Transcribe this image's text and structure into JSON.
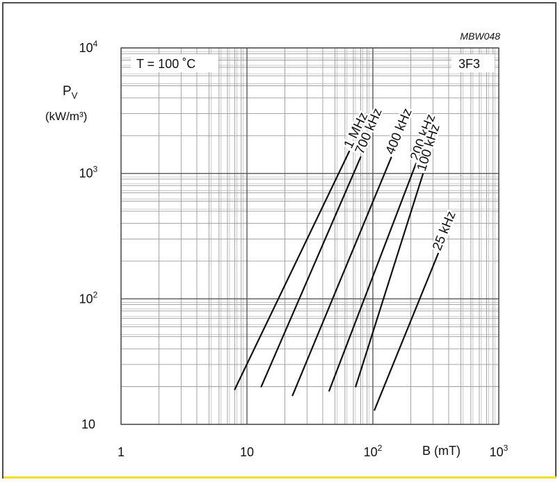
{
  "chart_data": {
    "type": "line",
    "figure_code": "MBW048",
    "material": "3F3",
    "condition": "T = 100 ˚C",
    "ylabel_main": "P",
    "ylabel_sub": "V",
    "ylabel_units": "(kW/m³)",
    "xlabel": "B (mT)",
    "x_scale": "log",
    "y_scale": "log",
    "xlim": [
      1,
      1000
    ],
    "ylim": [
      10,
      10000
    ],
    "grid": true,
    "x_ticks": [
      {
        "value": 1,
        "base": "1",
        "exp": ""
      },
      {
        "value": 10,
        "base": "10",
        "exp": ""
      },
      {
        "value": 100,
        "base": "10",
        "exp": "2"
      },
      {
        "value": 1000,
        "base": "10",
        "exp": "3"
      }
    ],
    "y_ticks": [
      {
        "value": 10,
        "base": "10",
        "exp": ""
      },
      {
        "value": 100,
        "base": "10",
        "exp": "2"
      },
      {
        "value": 1000,
        "base": "10",
        "exp": "3"
      },
      {
        "value": 10000,
        "base": "10",
        "exp": "4"
      }
    ],
    "series": [
      {
        "name": "1 MHz",
        "points": [
          [
            8.0,
            19.0
          ],
          [
            65,
            1500
          ]
        ]
      },
      {
        "name": "700 kHz",
        "points": [
          [
            13,
            20.0
          ],
          [
            80,
            1350
          ]
        ]
      },
      {
        "name": "400 kHz",
        "points": [
          [
            23,
            17.0
          ],
          [
            140,
            1340
          ]
        ]
      },
      {
        "name": "200 kHz",
        "points": [
          [
            45,
            18.5
          ],
          [
            220,
            1200
          ]
        ]
      },
      {
        "name": "100 kHz",
        "points": [
          [
            73,
            20.0
          ],
          [
            250,
            990
          ]
        ]
      },
      {
        "name": "25 kHz",
        "points": [
          [
            103,
            13.0
          ],
          [
            330,
            230
          ]
        ]
      }
    ]
  }
}
